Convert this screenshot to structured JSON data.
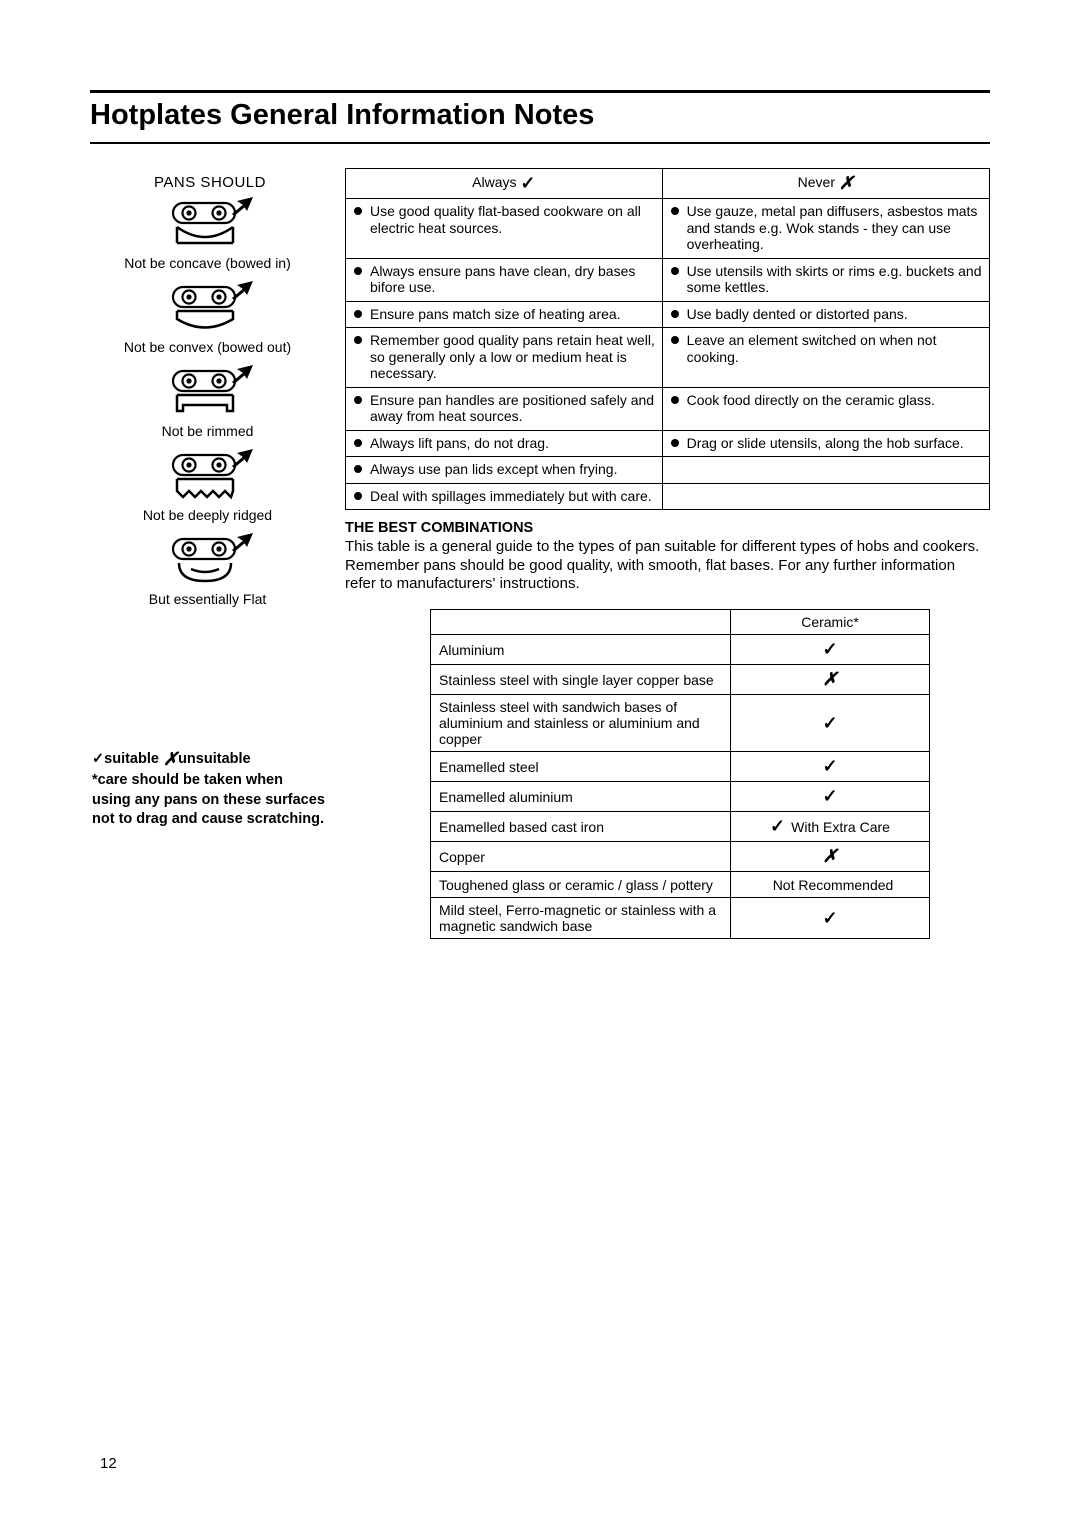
{
  "title": "Hotplates General Information Notes",
  "page_number": "12",
  "colors": {
    "text": "#000000",
    "background": "#ffffff",
    "rule": "#000000",
    "border": "#000000"
  },
  "left": {
    "pans_should": "PANS SHOULD",
    "diagrams": [
      {
        "caption": "Not be concave (bowed in)",
        "shape": "concave"
      },
      {
        "caption": "Not be convex (bowed out)",
        "shape": "convex"
      },
      {
        "caption": "Not be rimmed",
        "shape": "rimmed"
      },
      {
        "caption": "Not be deeply ridged",
        "shape": "ridged"
      },
      {
        "caption": "But essentially Flat",
        "shape": "flat"
      }
    ],
    "legend": {
      "suitable": "suitable",
      "unsuitable": "unsuitable",
      "note": "*care should be taken when using any pans on these surfaces not to drag and cause scratching."
    }
  },
  "an_table": {
    "headers": {
      "always": "Always",
      "never": "Never"
    },
    "rows": [
      {
        "always": "Use good quality flat-based cookware on all electric heat sources.",
        "never": "Use gauze, metal pan diffusers, asbestos mats and stands e.g. Wok stands - they can use overheating."
      },
      {
        "always": "Always ensure pans have clean, dry bases bifore use.",
        "never": "Use utensils with skirts or rims e.g. buckets and some kettles."
      },
      {
        "always": "Ensure pans match size of heating area.",
        "never": "Use badly dented or distorted pans."
      },
      {
        "always": "Remember good quality pans retain heat well, so generally only a low or medium heat is necessary.",
        "never": "Leave an element switched on when not cooking."
      },
      {
        "always": "Ensure pan handles are positioned safely and away from heat sources.",
        "never": "Cook food directly on the ceramic glass."
      },
      {
        "always": "Always lift pans, do not drag.",
        "never": "Drag or slide utensils, along the hob surface."
      },
      {
        "always": "Always use pan lids except when frying.",
        "never": ""
      },
      {
        "always": "Deal with spillages immediately but with care.",
        "never": ""
      }
    ]
  },
  "combinations": {
    "heading": "THE BEST COMBINATIONS",
    "para": "This table is a general guide to the types of pan suitable for different types of hobs and cookers. Remember pans should be good quality, with smooth, flat bases. For any further information refer to manufacturers' instructions.",
    "col_header": "Ceramic*",
    "rows": [
      {
        "material": "Aluminium",
        "value": "check"
      },
      {
        "material": "Stainless steel with single layer copper base",
        "value": "cross"
      },
      {
        "material": "Stainless steel with sandwich bases of aluminium and stainless or aluminium and copper",
        "value": "check"
      },
      {
        "material": "Enamelled steel",
        "value": "check"
      },
      {
        "material": "Enamelled aluminium",
        "value": "check"
      },
      {
        "material": "Enamelled based cast iron",
        "value": "check",
        "extra": "With Extra Care"
      },
      {
        "material": "Copper",
        "value": "cross"
      },
      {
        "material": "Toughened glass or ceramic / glass / pottery",
        "value": "text",
        "extra": "Not Recommended"
      },
      {
        "material": "Mild steel, Ferro-magnetic or stainless with a magnetic sandwich base",
        "value": "check"
      }
    ]
  }
}
